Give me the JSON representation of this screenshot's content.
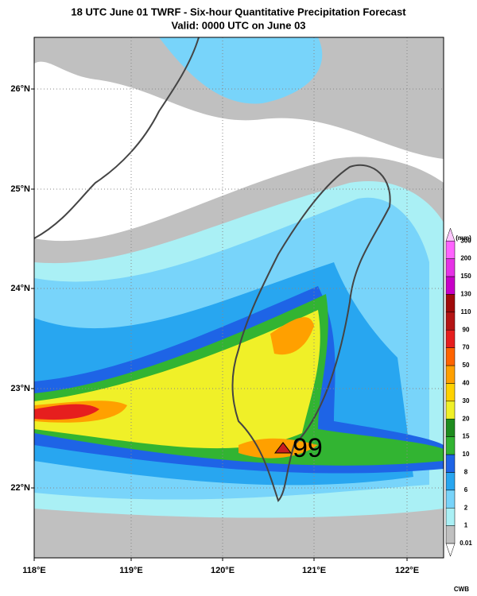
{
  "header": {
    "title": "18 UTC June 01 TWRF - Six-hour Quantitative Precipitation Forecast",
    "subtitle": "Valid: 0000 UTC on June 03"
  },
  "lat_labels": [
    "26°N",
    "25°N",
    "24°N",
    "23°N",
    "22°N"
  ],
  "lon_labels": [
    "118°E",
    "119°E",
    "120°E",
    "121°E",
    "122°E"
  ],
  "annotation": "99",
  "colorbar": {
    "unit": "(mm)",
    "levels": [
      0.01,
      1,
      2,
      6,
      8,
      10,
      15,
      20,
      30,
      40,
      50,
      70,
      90,
      110,
      130,
      150,
      200,
      300
    ],
    "colors": [
      "#ffffff",
      "#c0c0c0",
      "#aaf0f5",
      "#78d4fa",
      "#28a6f0",
      "#1e64e6",
      "#32b432",
      "#1e8c1e",
      "#f0f028",
      "#ffd200",
      "#ffa000",
      "#ff6400",
      "#e61e1e",
      "#b41414",
      "#a00a0a",
      "#c800c8",
      "#e632e6",
      "#ff64ff",
      "#ffc8ff"
    ]
  },
  "footer": "CWB"
}
